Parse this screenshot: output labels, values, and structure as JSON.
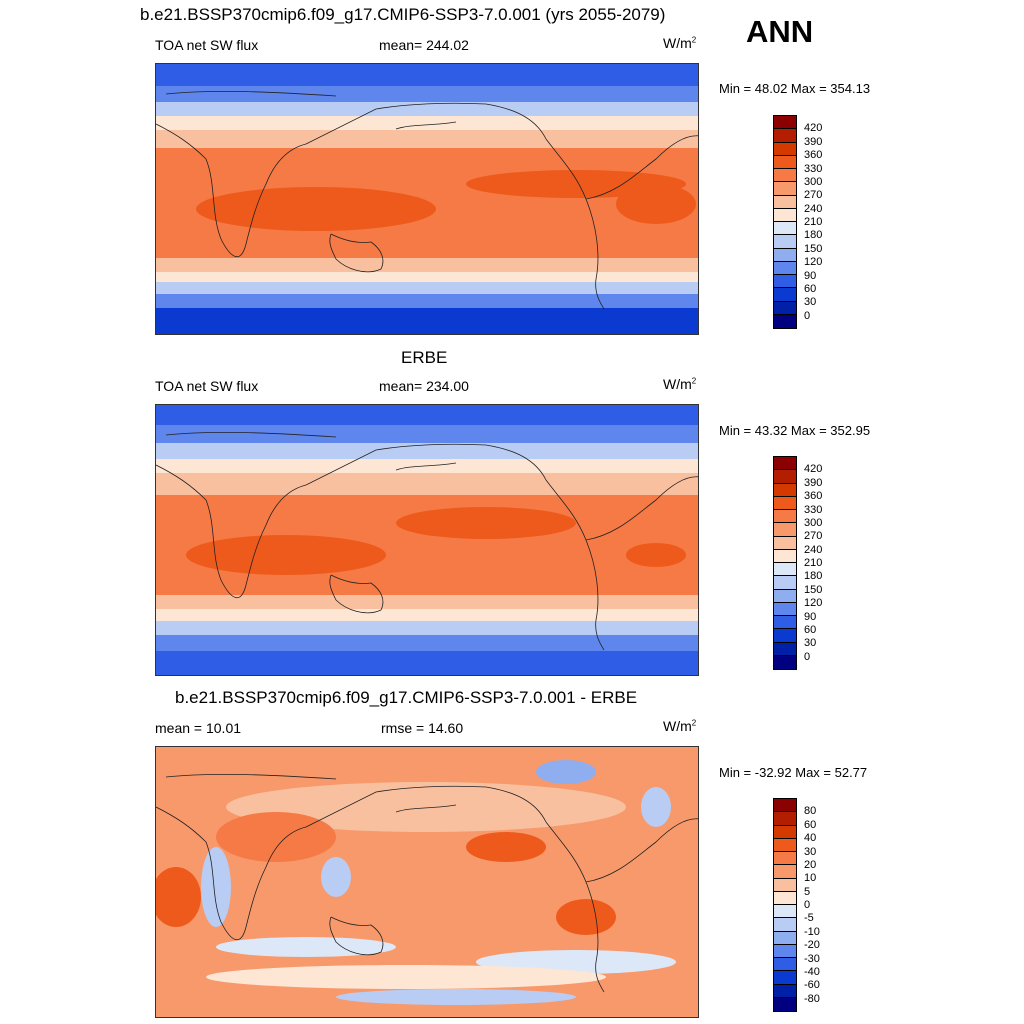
{
  "header": {
    "title": "b.e21.BSSP370cmip6.f09_g17.CMIP6-SSP3-7.0.001 (yrs 2055-2079)",
    "season": "ANN"
  },
  "panels": [
    {
      "title": "",
      "left": "TOA net SW flux",
      "center": "mean= 244.02",
      "unit_base": "W/m",
      "unit_exp": "2",
      "minmax": "Min =  48.02 Max = 354.13"
    },
    {
      "title": "ERBE",
      "left": "TOA net SW flux",
      "center": "mean= 234.00",
      "unit_base": "W/m",
      "unit_exp": "2",
      "minmax": "Min =  43.32 Max = 352.95"
    },
    {
      "title": "b.e21.BSSP370cmip6.f09_g17.CMIP6-SSP3-7.0.001 - ERBE",
      "left": "mean =  10.01",
      "center": "rmse =  14.60",
      "unit_base": "W/m",
      "unit_exp": "2",
      "minmax": "Min = -32.92 Max =  52.77"
    }
  ],
  "colorbar_abs": {
    "labels": [
      "420",
      "390",
      "360",
      "330",
      "300",
      "270",
      "240",
      "210",
      "180",
      "150",
      "120",
      "90",
      "60",
      "30",
      "0"
    ],
    "colors": [
      "#8b0000",
      "#b41e00",
      "#d43a00",
      "#ee5a1c",
      "#f57a45",
      "#f7996b",
      "#f9c0a0",
      "#fde6d4",
      "#dce8f8",
      "#b8ccf4",
      "#8eaef0",
      "#5f86ec",
      "#2f5de6",
      "#0b3ad0",
      "#0020a8",
      "#000080"
    ]
  },
  "colorbar_diff": {
    "labels": [
      "80",
      "60",
      "40",
      "30",
      "20",
      "10",
      "5",
      "0",
      "-5",
      "-10",
      "-20",
      "-30",
      "-40",
      "-60",
      "-80"
    ],
    "colors": [
      "#8b0000",
      "#b41e00",
      "#d43a00",
      "#ee5a1c",
      "#f57a45",
      "#f7996b",
      "#f9c0a0",
      "#fde6d4",
      "#dce8f8",
      "#b8ccf4",
      "#8eaef0",
      "#5f86ec",
      "#2f5de6",
      "#0b3ad0",
      "#0020a8",
      "#000080"
    ]
  }
}
